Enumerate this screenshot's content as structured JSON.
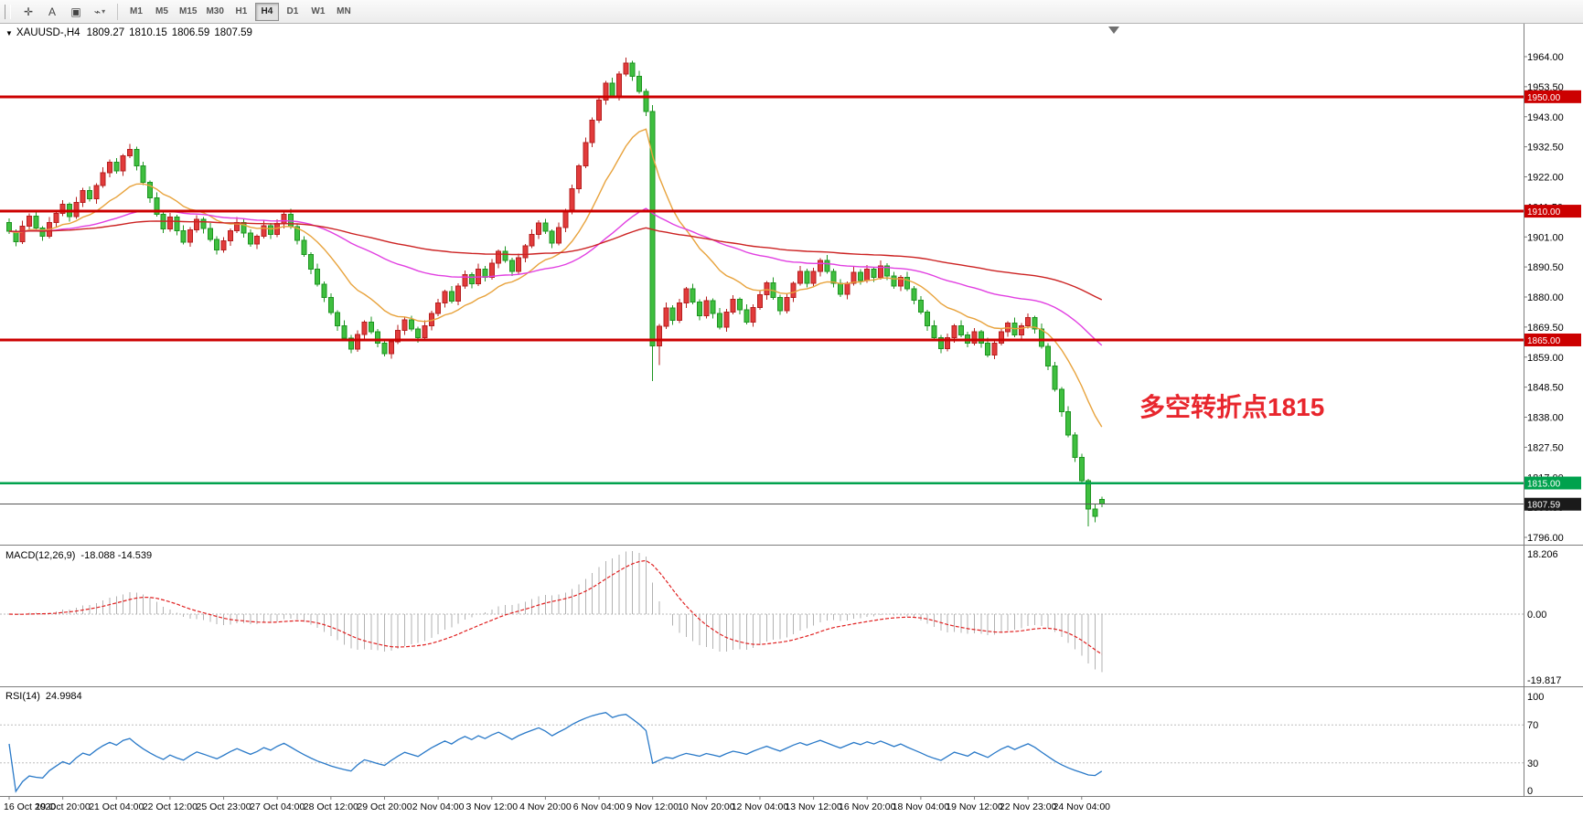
{
  "toolbar": {
    "tools": [
      {
        "id": "crosshair",
        "glyph": "✛"
      },
      {
        "id": "text-label",
        "glyph": "A"
      },
      {
        "id": "text-frame",
        "glyph": "▣"
      },
      {
        "id": "line-studies",
        "glyph": "⌁",
        "dropdown": "▾"
      }
    ],
    "timeframes": [
      {
        "label": "M1"
      },
      {
        "label": "M5"
      },
      {
        "label": "M15"
      },
      {
        "label": "M30"
      },
      {
        "label": "H1"
      },
      {
        "label": "H4",
        "active": true
      },
      {
        "label": "D1"
      },
      {
        "label": "W1"
      },
      {
        "label": "MN"
      }
    ]
  },
  "chart": {
    "info": {
      "dropdown_glyph": "▼",
      "title": "XAUUSD-,H4",
      "open": "1809.27",
      "high": "1810.15",
      "low": "1806.59",
      "close": "1807.59"
    },
    "annotation": {
      "text": "多空转折点1815",
      "color": "#e8262d"
    },
    "levels": [
      {
        "price": 1950.0,
        "label": "1950.00",
        "color": "#cc0000"
      },
      {
        "price": 1910.0,
        "label": "1910.00",
        "color": "#cc0000"
      },
      {
        "price": 1865.0,
        "label": "1865.00",
        "color": "#cc0000"
      },
      {
        "price": 1815.0,
        "label": "1815.00",
        "color": "#00a24d"
      }
    ],
    "current_price": {
      "value": 1807.59,
      "label": "1807.59",
      "line_color": "#555555",
      "badge_color": "#1a1a1a"
    }
  },
  "indicators": {
    "macd": {
      "label": "MACD(12,26,9)",
      "values_text": "-18.088 -14.539",
      "scale": {
        "top": "18.206",
        "zero": "0.00",
        "bottom": "-19.817"
      }
    },
    "rsi": {
      "label": "RSI(14)",
      "value_text": "24.9984",
      "scale": [
        "100",
        "70",
        "30",
        "0"
      ],
      "level_values": [
        70,
        30
      ]
    }
  },
  "chart_data": {
    "type": "candlestick",
    "symbol": "XAUUSD-",
    "timeframe": "H4",
    "title": "XAUUSD-,H4 1809.27 1810.15 1806.59 1807.59",
    "up_color": "#e23b3b",
    "down_color": "#3fbf3f",
    "x_labels": [
      "16 Oct 2020",
      "19 Oct 20:00",
      "21 Oct 04:00",
      "22 Oct 12:00",
      "25 Oct 23:00",
      "27 Oct 04:00",
      "28 Oct 12:00",
      "29 Oct 20:00",
      "2 Nov 04:00",
      "3 Nov 12:00",
      "4 Nov 20:00",
      "6 Nov 04:00",
      "9 Nov 12:00",
      "10 Nov 20:00",
      "12 Nov 04:00",
      "13 Nov 12:00",
      "16 Nov 20:00",
      "18 Nov 04:00",
      "19 Nov 12:00",
      "22 Nov 23:00",
      "24 Nov 04:00"
    ],
    "bars_per_x_label": 8,
    "y_axis": {
      "min": 1793.4,
      "max": 1974.9,
      "ticks": [
        "1964.00",
        "1953.50",
        "1943.00",
        "1932.50",
        "1922.00",
        "1911.50",
        "1901.00",
        "1890.50",
        "1880.00",
        "1869.50",
        "1859.00",
        "1848.50",
        "1838.00",
        "1827.50",
        "1817.00",
        "1806.50",
        "1796.00"
      ]
    },
    "horizontal_levels": [
      1950.0,
      1910.0,
      1865.0,
      1815.0
    ],
    "last_price": 1807.59,
    "moving_averages": [
      {
        "name": "ma-fast",
        "type": "ema",
        "period": 15,
        "color": "#e8a33d"
      },
      {
        "name": "ma-mid",
        "type": "ema",
        "period": 55,
        "color": "#e13fe1"
      },
      {
        "name": "ma-slow",
        "type": "ema",
        "period": 130,
        "color": "#cc2222"
      }
    ],
    "macd": {
      "fast": 12,
      "slow": 26,
      "signal": 9,
      "last_main": -18.088,
      "last_signal": -14.539,
      "scale_max": 18.206,
      "scale_min": -19.817
    },
    "rsi": {
      "period": 14,
      "last": 24.9984,
      "levels": [
        70,
        30
      ]
    },
    "ohlc": [
      [
        1906.0,
        1907.4,
        1902.1,
        1903.0
      ],
      [
        1903.0,
        1903.7,
        1897.7,
        1899.4
      ],
      [
        1899.4,
        1906.7,
        1898.6,
        1904.8
      ],
      [
        1904.8,
        1909.2,
        1903.3,
        1908.2
      ],
      [
        1908.2,
        1909.6,
        1903.2,
        1904.1
      ],
      [
        1904.1,
        1904.8,
        1899.6,
        1901.3
      ],
      [
        1901.3,
        1907.9,
        1900.5,
        1906.0
      ],
      [
        1906.0,
        1910.2,
        1904.5,
        1909.2
      ],
      [
        1909.2,
        1913.8,
        1908.3,
        1912.4
      ],
      [
        1912.4,
        1913.1,
        1906.4,
        1908.1
      ],
      [
        1908.1,
        1914.9,
        1907.3,
        1913.0
      ],
      [
        1913.0,
        1918.2,
        1911.5,
        1917.2
      ],
      [
        1917.2,
        1918.6,
        1913.4,
        1914.3
      ],
      [
        1914.3,
        1919.7,
        1912.6,
        1919.0
      ],
      [
        1919.0,
        1925.3,
        1918.2,
        1923.4
      ],
      [
        1923.4,
        1928.1,
        1921.9,
        1927.1
      ],
      [
        1927.1,
        1928.5,
        1923.1,
        1924.0
      ],
      [
        1924.0,
        1930.0,
        1922.3,
        1929.3
      ],
      [
        1929.3,
        1933.5,
        1928.5,
        1931.6
      ],
      [
        1931.6,
        1932.6,
        1924.3,
        1925.8
      ],
      [
        1925.8,
        1927.2,
        1919.2,
        1920.1
      ],
      [
        1920.1,
        1920.8,
        1912.9,
        1914.6
      ],
      [
        1914.6,
        1916.5,
        1908.1,
        1908.9
      ],
      [
        1908.9,
        1909.9,
        1902.3,
        1903.8
      ],
      [
        1903.8,
        1909.4,
        1902.9,
        1908.0
      ],
      [
        1908.0,
        1908.7,
        1901.5,
        1903.2
      ],
      [
        1903.2,
        1905.1,
        1898.3,
        1899.1
      ],
      [
        1899.1,
        1904.4,
        1897.6,
        1903.4
      ],
      [
        1903.4,
        1908.6,
        1902.5,
        1907.2
      ],
      [
        1907.2,
        1907.9,
        1902.2,
        1903.9
      ],
      [
        1903.9,
        1905.8,
        1899.4,
        1900.2
      ],
      [
        1900.2,
        1901.2,
        1894.9,
        1896.4
      ],
      [
        1896.4,
        1901.0,
        1895.5,
        1899.6
      ],
      [
        1899.6,
        1903.9,
        1897.9,
        1903.2
      ],
      [
        1903.2,
        1908.0,
        1902.4,
        1906.1
      ],
      [
        1906.1,
        1907.1,
        1900.8,
        1902.3
      ],
      [
        1902.3,
        1903.7,
        1897.6,
        1898.5
      ],
      [
        1898.5,
        1901.9,
        1896.8,
        1901.2
      ],
      [
        1901.2,
        1906.8,
        1900.4,
        1904.9
      ],
      [
        1904.9,
        1905.9,
        1900.3,
        1901.8
      ],
      [
        1901.8,
        1907.1,
        1900.9,
        1905.7
      ],
      [
        1905.7,
        1909.6,
        1904.0,
        1908.9
      ],
      [
        1908.9,
        1910.8,
        1903.8,
        1904.6
      ],
      [
        1904.6,
        1905.6,
        1898.3,
        1899.8
      ],
      [
        1899.8,
        1901.2,
        1894.0,
        1894.9
      ],
      [
        1894.9,
        1895.6,
        1888.0,
        1889.7
      ],
      [
        1889.7,
        1891.6,
        1883.7,
        1884.5
      ],
      [
        1884.5,
        1885.5,
        1878.3,
        1879.8
      ],
      [
        1879.8,
        1881.2,
        1873.7,
        1874.6
      ],
      [
        1874.6,
        1875.3,
        1868.2,
        1869.9
      ],
      [
        1869.9,
        1871.8,
        1864.9,
        1865.7
      ],
      [
        1865.7,
        1866.7,
        1860.3,
        1861.8
      ],
      [
        1861.8,
        1868.3,
        1860.9,
        1866.9
      ],
      [
        1866.9,
        1871.9,
        1865.2,
        1871.2
      ],
      [
        1871.2,
        1873.1,
        1867.0,
        1867.8
      ],
      [
        1867.8,
        1868.8,
        1862.4,
        1863.9
      ],
      [
        1863.9,
        1865.3,
        1859.3,
        1860.2
      ],
      [
        1860.2,
        1865.1,
        1858.5,
        1864.4
      ],
      [
        1864.4,
        1870.2,
        1863.6,
        1868.3
      ],
      [
        1868.3,
        1873.0,
        1866.8,
        1872.0
      ],
      [
        1872.0,
        1873.4,
        1868.0,
        1868.9
      ],
      [
        1868.9,
        1869.6,
        1864.1,
        1865.8
      ],
      [
        1865.8,
        1871.8,
        1865.0,
        1869.9
      ],
      [
        1869.9,
        1875.2,
        1868.4,
        1874.2
      ],
      [
        1874.2,
        1879.4,
        1873.3,
        1878.0
      ],
      [
        1878.0,
        1882.6,
        1876.3,
        1881.9
      ],
      [
        1881.9,
        1883.8,
        1877.8,
        1878.6
      ],
      [
        1878.6,
        1884.8,
        1877.1,
        1883.8
      ],
      [
        1883.8,
        1889.3,
        1882.9,
        1887.9
      ],
      [
        1887.9,
        1888.6,
        1883.0,
        1884.7
      ],
      [
        1884.7,
        1891.7,
        1883.9,
        1889.8
      ],
      [
        1889.8,
        1890.8,
        1885.4,
        1886.9
      ],
      [
        1886.9,
        1893.2,
        1886.0,
        1891.8
      ],
      [
        1891.8,
        1896.6,
        1890.1,
        1895.9
      ],
      [
        1895.9,
        1897.8,
        1891.9,
        1892.7
      ],
      [
        1892.7,
        1893.7,
        1887.4,
        1888.9
      ],
      [
        1888.9,
        1895.2,
        1888.0,
        1893.8
      ],
      [
        1893.8,
        1898.6,
        1892.1,
        1897.9
      ],
      [
        1897.9,
        1903.7,
        1897.1,
        1901.8
      ],
      [
        1901.8,
        1906.9,
        1900.3,
        1905.9
      ],
      [
        1905.9,
        1907.3,
        1902.1,
        1903.0
      ],
      [
        1903.0,
        1903.7,
        1897.1,
        1898.8
      ],
      [
        1898.8,
        1906.1,
        1898.0,
        1904.2
      ],
      [
        1904.2,
        1910.8,
        1902.7,
        1909.8
      ],
      [
        1909.8,
        1919.3,
        1908.9,
        1917.9
      ],
      [
        1917.9,
        1926.5,
        1916.2,
        1925.8
      ],
      [
        1925.8,
        1935.8,
        1925.0,
        1933.9
      ],
      [
        1933.9,
        1942.8,
        1932.4,
        1941.8
      ],
      [
        1941.8,
        1950.3,
        1940.9,
        1948.9
      ],
      [
        1948.9,
        1955.5,
        1947.2,
        1954.8
      ],
      [
        1954.8,
        1956.7,
        1949.4,
        1950.2
      ],
      [
        1950.2,
        1958.9,
        1948.7,
        1957.9
      ],
      [
        1957.9,
        1963.7,
        1957.1,
        1961.8
      ],
      [
        1961.8,
        1962.5,
        1955.5,
        1957.2
      ],
      [
        1957.2,
        1959.1,
        1951.1,
        1951.9
      ],
      [
        1951.9,
        1952.9,
        1943.3,
        1944.8
      ],
      [
        1944.8,
        1947.0,
        1850.6,
        1862.9
      ],
      [
        1862.9,
        1870.5,
        1856.2,
        1869.8
      ],
      [
        1869.8,
        1878.1,
        1868.9,
        1876.2
      ],
      [
        1876.2,
        1877.2,
        1870.3,
        1871.8
      ],
      [
        1871.8,
        1879.3,
        1870.9,
        1877.9
      ],
      [
        1877.9,
        1883.5,
        1876.2,
        1882.8
      ],
      [
        1882.8,
        1884.7,
        1877.4,
        1878.2
      ],
      [
        1878.2,
        1879.2,
        1871.9,
        1873.4
      ],
      [
        1873.4,
        1880.2,
        1872.5,
        1878.8
      ],
      [
        1878.8,
        1879.5,
        1872.5,
        1874.2
      ],
      [
        1874.2,
        1876.1,
        1868.6,
        1869.4
      ],
      [
        1869.4,
        1875.8,
        1867.9,
        1874.8
      ],
      [
        1874.8,
        1880.6,
        1873.9,
        1879.2
      ],
      [
        1879.2,
        1879.9,
        1873.9,
        1875.6
      ],
      [
        1875.6,
        1877.5,
        1870.4,
        1871.2
      ],
      [
        1871.2,
        1877.4,
        1869.7,
        1876.4
      ],
      [
        1876.4,
        1882.2,
        1875.5,
        1880.8
      ],
      [
        1880.8,
        1885.6,
        1879.1,
        1884.9
      ],
      [
        1884.9,
        1886.8,
        1879.0,
        1879.8
      ],
      [
        1879.8,
        1880.8,
        1873.7,
        1875.2
      ],
      [
        1875.2,
        1881.3,
        1874.3,
        1879.9
      ],
      [
        1879.9,
        1885.5,
        1878.2,
        1884.8
      ],
      [
        1884.8,
        1890.8,
        1884.0,
        1888.9
      ],
      [
        1888.9,
        1889.9,
        1883.3,
        1884.8
      ],
      [
        1884.8,
        1890.3,
        1883.9,
        1888.9
      ],
      [
        1888.9,
        1893.5,
        1887.2,
        1892.8
      ],
      [
        1892.8,
        1894.7,
        1888.1,
        1888.9
      ],
      [
        1888.9,
        1889.9,
        1883.3,
        1884.8
      ],
      [
        1884.8,
        1886.2,
        1880.0,
        1880.9
      ],
      [
        1880.9,
        1885.5,
        1879.2,
        1884.8
      ],
      [
        1884.8,
        1890.6,
        1884.0,
        1888.7
      ],
      [
        1888.7,
        1889.7,
        1884.3,
        1885.8
      ],
      [
        1885.8,
        1891.2,
        1884.9,
        1889.8
      ],
      [
        1889.8,
        1890.5,
        1885.2,
        1886.9
      ],
      [
        1886.9,
        1892.7,
        1886.1,
        1890.8
      ],
      [
        1890.8,
        1891.8,
        1885.9,
        1887.4
      ],
      [
        1887.4,
        1888.8,
        1882.9,
        1883.8
      ],
      [
        1883.8,
        1887.6,
        1882.1,
        1886.9
      ],
      [
        1886.9,
        1888.8,
        1882.0,
        1882.8
      ],
      [
        1882.8,
        1883.8,
        1877.4,
        1878.9
      ],
      [
        1878.9,
        1880.3,
        1873.9,
        1874.8
      ],
      [
        1874.8,
        1875.5,
        1868.2,
        1869.9
      ],
      [
        1869.9,
        1871.8,
        1865.0,
        1865.8
      ],
      [
        1865.8,
        1866.8,
        1860.4,
        1861.9
      ],
      [
        1861.9,
        1867.2,
        1861.0,
        1865.8
      ],
      [
        1865.8,
        1870.6,
        1864.1,
        1869.9
      ],
      [
        1869.9,
        1871.8,
        1866.0,
        1866.8
      ],
      [
        1866.8,
        1867.8,
        1862.4,
        1863.9
      ],
      [
        1863.9,
        1869.2,
        1863.0,
        1867.8
      ],
      [
        1867.8,
        1868.5,
        1862.2,
        1863.9
      ],
      [
        1863.9,
        1865.8,
        1859.0,
        1859.8
      ],
      [
        1859.8,
        1864.9,
        1858.3,
        1863.9
      ],
      [
        1863.9,
        1869.2,
        1863.0,
        1867.8
      ],
      [
        1867.8,
        1871.6,
        1866.1,
        1870.9
      ],
      [
        1870.9,
        1872.8,
        1866.0,
        1866.8
      ],
      [
        1866.8,
        1870.9,
        1865.3,
        1869.9
      ],
      [
        1869.9,
        1874.2,
        1869.0,
        1872.8
      ],
      [
        1872.8,
        1873.5,
        1867.2,
        1868.9
      ],
      [
        1868.9,
        1870.8,
        1862.0,
        1862.8
      ],
      [
        1862.8,
        1863.8,
        1854.4,
        1855.9
      ],
      [
        1855.9,
        1857.3,
        1846.9,
        1847.8
      ],
      [
        1847.8,
        1848.5,
        1838.2,
        1839.9
      ],
      [
        1839.9,
        1841.8,
        1831.0,
        1831.8
      ],
      [
        1831.8,
        1832.8,
        1822.4,
        1823.9
      ],
      [
        1823.9,
        1825.3,
        1814.9,
        1815.8
      ],
      [
        1815.8,
        1816.5,
        1799.8,
        1805.9
      ],
      [
        1805.9,
        1807.8,
        1801.2,
        1803.4
      ],
      [
        1809.27,
        1810.15,
        1806.59,
        1807.59
      ]
    ]
  }
}
